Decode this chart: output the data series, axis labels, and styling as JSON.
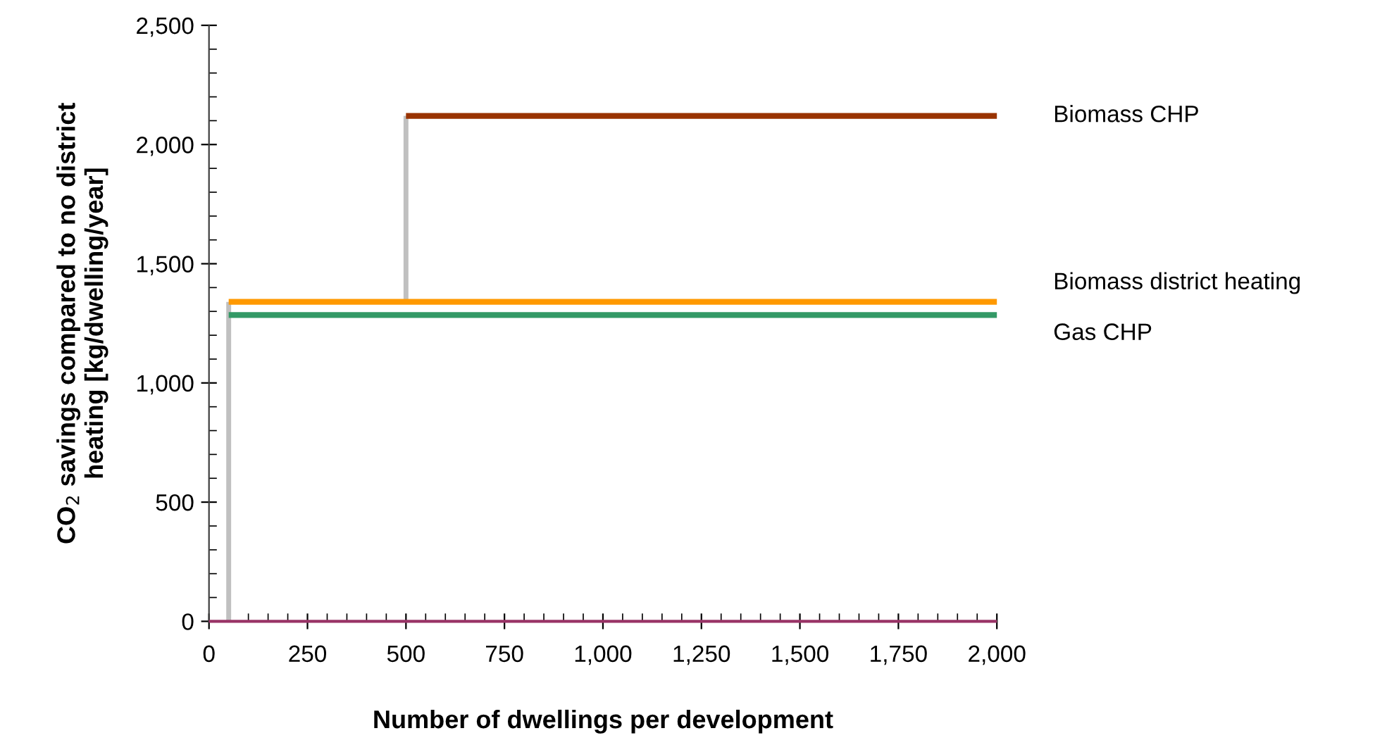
{
  "chart_data": {
    "type": "line",
    "xlabel": "Number of dwellings per development",
    "ylabel": "CO$_{2}$ savings compared to no district\nheating [kg/dwelling/year]",
    "xlim": [
      0,
      2000
    ],
    "xticks": [
      0,
      250,
      500,
      750,
      {
        "value": 1000,
        "label": "1,000"
      },
      {
        "value": 1250,
        "label": "1,250"
      },
      {
        "value": 1500,
        "label": "1,500"
      },
      {
        "value": 1750,
        "label": "1,750"
      },
      {
        "value": 2000,
        "label": "2,000"
      }
    ],
    "ylim": [
      0,
      2500
    ],
    "yticks": [
      0,
      500,
      {
        "value": 1000,
        "label": "1,000"
      },
      {
        "value": 1500,
        "label": "1,500"
      },
      {
        "value": 2000,
        "label": "2,000"
      },
      {
        "value": 2500,
        "label": "2,500"
      }
    ],
    "grid": false,
    "marker": "none",
    "line_style": "solid",
    "series": [
      {
        "color": "#c0c0c0",
        "x": [
          50,
          50
        ],
        "values": [
          0,
          1340
        ]
      },
      {
        "color": "#c0c0c0",
        "x": [
          500,
          500
        ],
        "values": [
          1340,
          2120
        ]
      },
      {
        "color": "#993300",
        "name": "Biomass CHP",
        "x": [
          500,
          2000
        ],
        "values": [
          2120,
          2120
        ]
      },
      {
        "color": "#ff9900",
        "name": "Biomass district heating",
        "x": [
          50,
          2000
        ],
        "values": [
          1340,
          1340
        ]
      },
      {
        "color": "#339966",
        "name": "Gas CHP",
        "x": [
          50,
          2000
        ],
        "values": [
          1285,
          1285
        ]
      },
      {
        "color": "#993366",
        "x": [
          0,
          2000
        ],
        "values": [
          0,
          0
        ]
      }
    ]
  }
}
